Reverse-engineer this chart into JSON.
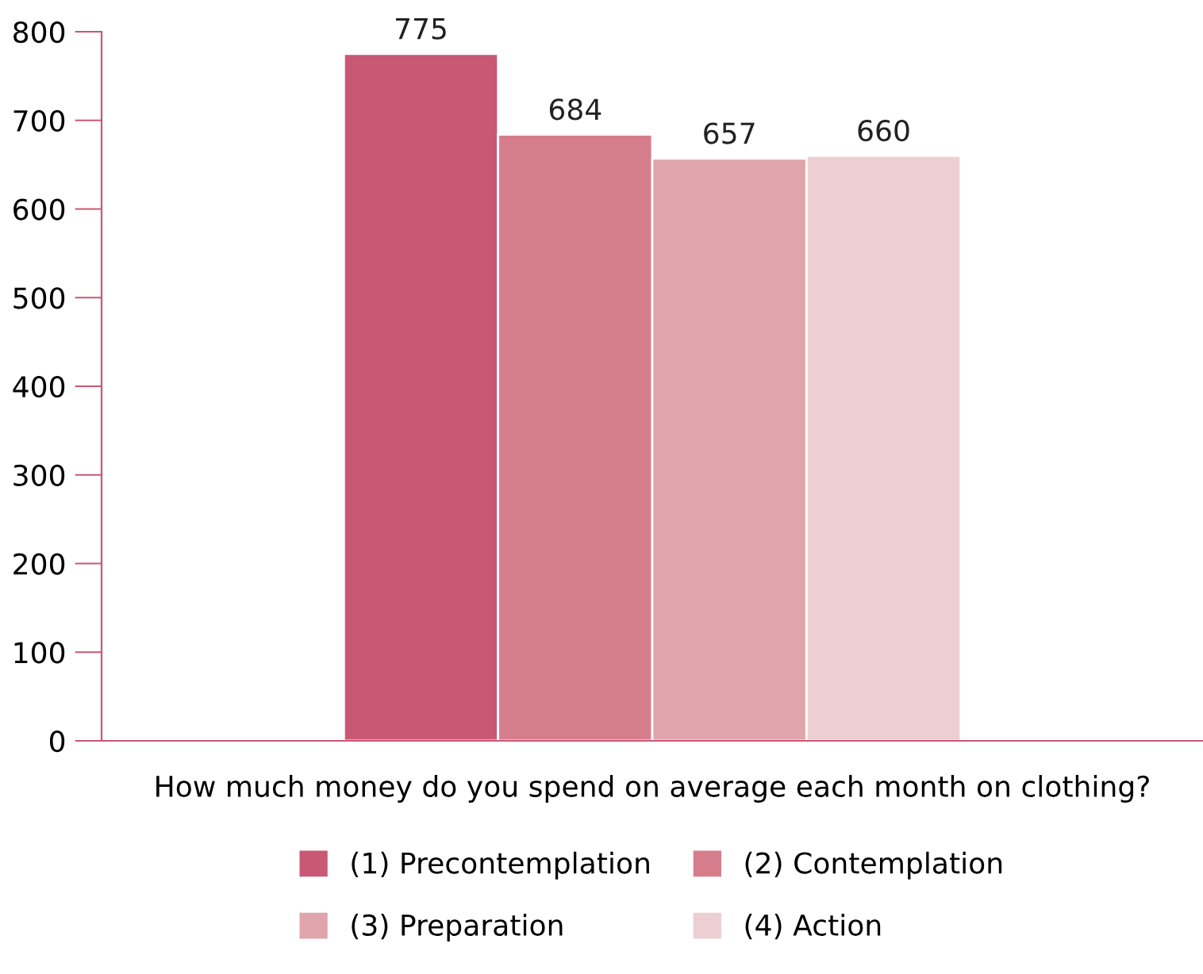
{
  "chart_data": {
    "type": "bar",
    "xlabel": "How much money do you spend on average each month on clothing?",
    "categories": [
      null
    ],
    "series": [
      {
        "name": "(1) Precontemplation",
        "color": "#c95874",
        "values": [
          775
        ]
      },
      {
        "name": "(2) Contemplation",
        "color": "#d67d8b",
        "values": [
          684
        ]
      },
      {
        "name": "(3) Preparation",
        "color": "#e0a4ab",
        "values": [
          657
        ]
      },
      {
        "name": "(4) Action",
        "color": "#eccfd2",
        "values": [
          660
        ]
      }
    ],
    "ylim": [
      0,
      800
    ],
    "yticks": [
      0,
      100,
      200,
      300,
      400,
      500,
      600,
      700,
      800
    ],
    "data_labels": true,
    "grid": false,
    "legend": "bottom"
  }
}
